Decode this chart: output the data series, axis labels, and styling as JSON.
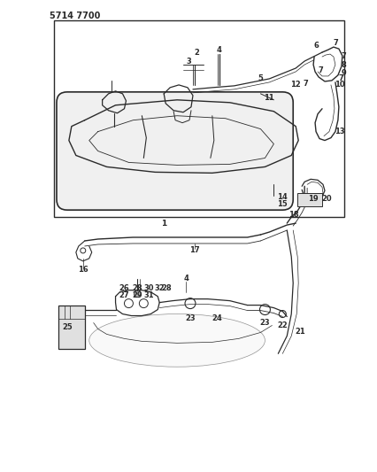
{
  "title": "5714 7700",
  "bg_color": "#ffffff",
  "lc": "#2a2a2a",
  "fig_width": 4.27,
  "fig_height": 5.33,
  "dpi": 100
}
